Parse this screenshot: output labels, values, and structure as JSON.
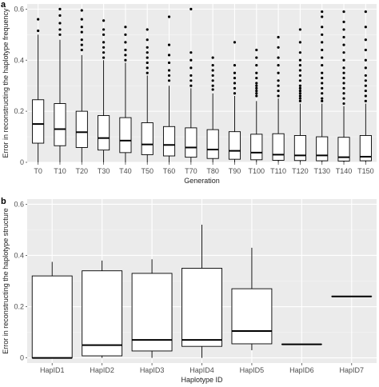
{
  "colors": {
    "panel_bg": "#ebebeb",
    "grid_major": "#ffffff",
    "grid_minor": "#f5f5f5",
    "box_fill": "#ffffff",
    "box_stroke": "#000000",
    "tick_text": "#4d4d4d"
  },
  "chart_data": [
    {
      "panel_label": "a",
      "type": "boxplot",
      "xlabel": "Generation",
      "ylabel": "Error in reconstructing the haplotype frequency",
      "ylim": [
        0,
        0.62
      ],
      "yticks": [
        "0",
        "0.2",
        "0.4",
        "0.6"
      ],
      "ytick_values": [
        0,
        0.2,
        0.4,
        0.6
      ],
      "grid": true,
      "categories": [
        "T0",
        "T10",
        "T20",
        "T30",
        "T40",
        "T50",
        "T60",
        "T70",
        "T80",
        "T90",
        "T100",
        "T110",
        "T120",
        "T130",
        "T140",
        "T150"
      ],
      "boxes": [
        {
          "lower_whisker": 0,
          "q1": 0.075,
          "median": 0.15,
          "q3": 0.245,
          "upper_whisker": 0.5,
          "outliers": [
            0.515,
            0.56
          ]
        },
        {
          "lower_whisker": 0,
          "q1": 0.065,
          "median": 0.13,
          "q3": 0.23,
          "upper_whisker": 0.48,
          "outliers": [
            0.5,
            0.52,
            0.545,
            0.575,
            0.6
          ]
        },
        {
          "lower_whisker": 0,
          "q1": 0.058,
          "median": 0.118,
          "q3": 0.2,
          "upper_whisker": 0.42,
          "outliers": [
            0.44,
            0.46,
            0.48,
            0.51,
            0.53,
            0.56,
            0.595
          ]
        },
        {
          "lower_whisker": 0,
          "q1": 0.048,
          "median": 0.095,
          "q3": 0.183,
          "upper_whisker": 0.4,
          "outliers": [
            0.41,
            0.43,
            0.45,
            0.47,
            0.5,
            0.52,
            0.555
          ]
        },
        {
          "lower_whisker": 0,
          "q1": 0.038,
          "median": 0.085,
          "q3": 0.175,
          "upper_whisker": 0.39,
          "outliers": [
            0.4,
            0.42,
            0.44,
            0.47,
            0.5,
            0.53
          ]
        },
        {
          "lower_whisker": 0,
          "q1": 0.03,
          "median": 0.07,
          "q3": 0.155,
          "upper_whisker": 0.34,
          "outliers": [
            0.35,
            0.37,
            0.39,
            0.41,
            0.43,
            0.45,
            0.48,
            0.52
          ]
        },
        {
          "lower_whisker": 0,
          "q1": 0.025,
          "median": 0.068,
          "q3": 0.14,
          "upper_whisker": 0.3,
          "outliers": [
            0.32,
            0.34,
            0.36,
            0.39,
            0.42,
            0.46,
            0.57
          ]
        },
        {
          "lower_whisker": 0,
          "q1": 0.02,
          "median": 0.058,
          "q3": 0.135,
          "upper_whisker": 0.29,
          "outliers": [
            0.3,
            0.32,
            0.34,
            0.37,
            0.4,
            0.43,
            0.6
          ]
        },
        {
          "lower_whisker": 0,
          "q1": 0.015,
          "median": 0.05,
          "q3": 0.128,
          "upper_whisker": 0.27,
          "outliers": [
            0.285,
            0.3,
            0.32,
            0.34,
            0.36,
            0.38,
            0.41
          ]
        },
        {
          "lower_whisker": 0,
          "q1": 0.012,
          "median": 0.045,
          "q3": 0.12,
          "upper_whisker": 0.26,
          "outliers": [
            0.27,
            0.29,
            0.31,
            0.33,
            0.35,
            0.38,
            0.47
          ]
        },
        {
          "lower_whisker": 0,
          "q1": 0.01,
          "median": 0.038,
          "q3": 0.11,
          "upper_whisker": 0.24,
          "outliers": [
            0.26,
            0.27,
            0.28,
            0.29,
            0.3,
            0.31,
            0.33,
            0.35,
            0.38,
            0.41,
            0.44
          ]
        },
        {
          "lower_whisker": 0,
          "q1": 0.008,
          "median": 0.03,
          "q3": 0.112,
          "upper_whisker": 0.25,
          "outliers": [
            0.26,
            0.28,
            0.3,
            0.32,
            0.35,
            0.38,
            0.41,
            0.45,
            0.49
          ]
        },
        {
          "lower_whisker": 0,
          "q1": 0.007,
          "median": 0.027,
          "q3": 0.105,
          "upper_whisker": 0.23,
          "outliers": [
            0.24,
            0.25,
            0.26,
            0.27,
            0.28,
            0.29,
            0.3,
            0.32,
            0.34,
            0.36,
            0.38,
            0.4,
            0.43,
            0.47,
            0.52
          ]
        },
        {
          "lower_whisker": 0,
          "q1": 0.006,
          "median": 0.027,
          "q3": 0.1,
          "upper_whisker": 0.23,
          "outliers": [
            0.24,
            0.25,
            0.27,
            0.29,
            0.31,
            0.33,
            0.35,
            0.38,
            0.41,
            0.44,
            0.47,
            0.5,
            0.53,
            0.57,
            0.59
          ]
        },
        {
          "lower_whisker": 0,
          "q1": 0.005,
          "median": 0.02,
          "q3": 0.098,
          "upper_whisker": 0.22,
          "outliers": [
            0.23,
            0.25,
            0.27,
            0.29,
            0.31,
            0.33,
            0.35,
            0.37,
            0.4,
            0.43,
            0.46,
            0.49,
            0.52,
            0.55,
            0.59
          ]
        },
        {
          "lower_whisker": 0,
          "q1": 0.006,
          "median": 0.022,
          "q3": 0.105,
          "upper_whisker": 0.23,
          "outliers": [
            0.24,
            0.26,
            0.28,
            0.3,
            0.32,
            0.34,
            0.37,
            0.4,
            0.44,
            0.48,
            0.53,
            0.59
          ]
        }
      ]
    },
    {
      "panel_label": "b",
      "type": "boxplot",
      "xlabel": "Haplotype ID",
      "ylabel": "Error in reconstructing the haplotype structure",
      "ylim": [
        -0.02,
        0.62
      ],
      "yticks": [
        "0",
        "0.2",
        "0.4",
        "0.6"
      ],
      "ytick_values": [
        0,
        0.2,
        0.4,
        0.6
      ],
      "grid": true,
      "categories": [
        "HapID1",
        "HapID2",
        "HapID3",
        "HapID4",
        "HapID5",
        "HapID6",
        "HapID7"
      ],
      "boxes": [
        {
          "lower_whisker": 0,
          "q1": 0,
          "median": 0,
          "q3": 0.32,
          "upper_whisker": 0.375,
          "outliers": []
        },
        {
          "lower_whisker": 0,
          "q1": 0.008,
          "median": 0.05,
          "q3": 0.34,
          "upper_whisker": 0.38,
          "outliers": []
        },
        {
          "lower_whisker": 0,
          "q1": 0.027,
          "median": 0.07,
          "q3": 0.33,
          "upper_whisker": 0.385,
          "outliers": []
        },
        {
          "lower_whisker": 0,
          "q1": 0.045,
          "median": 0.07,
          "q3": 0.35,
          "upper_whisker": 0.52,
          "outliers": []
        },
        {
          "lower_whisker": 0.03,
          "q1": 0.055,
          "median": 0.105,
          "q3": 0.27,
          "upper_whisker": 0.43,
          "outliers": []
        },
        {
          "lower_whisker": 0.053,
          "q1": 0.053,
          "median": 0.053,
          "q3": 0.053,
          "upper_whisker": 0.053,
          "outliers": []
        },
        {
          "lower_whisker": 0.24,
          "q1": 0.24,
          "median": 0.24,
          "q3": 0.24,
          "upper_whisker": 0.24,
          "outliers": []
        }
      ]
    }
  ]
}
